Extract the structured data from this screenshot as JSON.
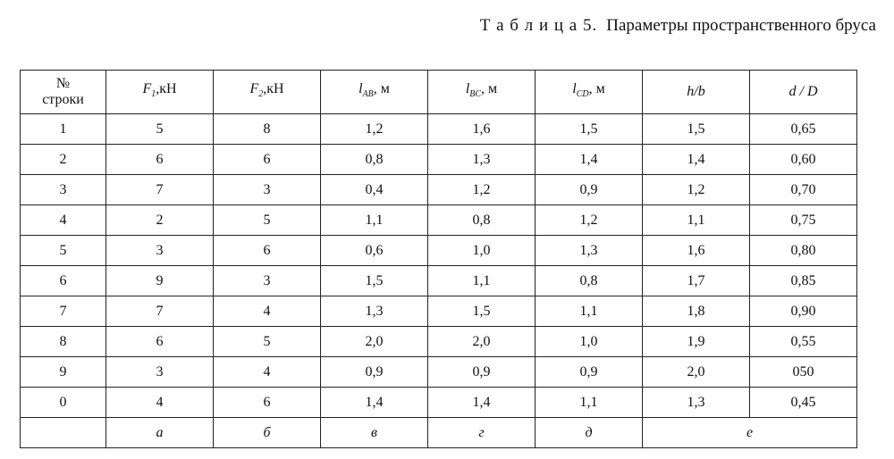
{
  "title": {
    "label": "Т а б л и ц а 5.",
    "text": "Параметры пространственного бруса"
  },
  "table": {
    "header": [
      {
        "lines": [
          "№",
          "строки"
        ]
      },
      {
        "main": "F",
        "sub": "1",
        "unit": ",кН"
      },
      {
        "main": "F",
        "sub": "2",
        "unit": ",кН"
      },
      {
        "main": "l",
        "sub": "AB",
        "unit": ", м"
      },
      {
        "main": "l",
        "sub": "BC",
        "unit": ", м"
      },
      {
        "main": "l",
        "sub": "CD",
        "unit": ", м"
      },
      {
        "text": "h/b"
      },
      {
        "text": "d / D"
      }
    ],
    "rows": [
      [
        "1",
        "5",
        "8",
        "1,2",
        "1,6",
        "1,5",
        "1,5",
        "0,65"
      ],
      [
        "2",
        "6",
        "6",
        "0,8",
        "1,3",
        "1,4",
        "1,4",
        "0,60"
      ],
      [
        "3",
        "7",
        "3",
        "0,4",
        "1,2",
        "0,9",
        "1,2",
        "0,70"
      ],
      [
        "4",
        "2",
        "5",
        "1,1",
        "0,8",
        "1,2",
        "1,1",
        "0,75"
      ],
      [
        "5",
        "3",
        "6",
        "0,6",
        "1,0",
        "1,3",
        "1,6",
        "0,80"
      ],
      [
        "6",
        "9",
        "3",
        "1,5",
        "1,1",
        "0,8",
        "1,7",
        "0,85"
      ],
      [
        "7",
        "7",
        "4",
        "1,3",
        "1,5",
        "1,1",
        "1,8",
        "0,90"
      ],
      [
        "8",
        "6",
        "5",
        "2,0",
        "2,0",
        "1,0",
        "1,9",
        "0,55"
      ],
      [
        "9",
        "3",
        "4",
        "0,9",
        "0,9",
        "0,9",
        "2,0",
        "050"
      ],
      [
        "0",
        "4",
        "6",
        "1,4",
        "1,4",
        "1,1",
        "1,3",
        "0,45"
      ]
    ],
    "footer": [
      "а",
      "б",
      "в",
      "г",
      "д",
      "е"
    ]
  }
}
